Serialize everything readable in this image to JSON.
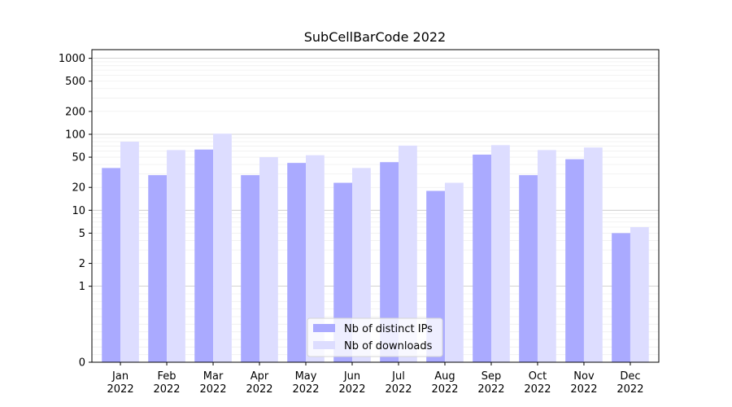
{
  "chart_data": {
    "type": "bar",
    "title": "SubCellBarCode 2022",
    "xlabel": "",
    "ylabel": "",
    "yscale": "symlog",
    "ylim": [
      0,
      1300
    ],
    "yticks": [
      0,
      1,
      2,
      5,
      10,
      20,
      50,
      100,
      200,
      500,
      1000
    ],
    "ytick_labels": [
      "0",
      "1",
      "2",
      "5",
      "10",
      "20",
      "50",
      "100",
      "200",
      "500",
      "1000"
    ],
    "categories": [
      "Jan",
      "Feb",
      "Mar",
      "Apr",
      "May",
      "Jun",
      "Jul",
      "Aug",
      "Sep",
      "Oct",
      "Nov",
      "Dec"
    ],
    "category_year": "2022",
    "series": [
      {
        "name": "Nb of distinct IPs",
        "color": "#aaaaff",
        "values": [
          36,
          29,
          63,
          29,
          42,
          23,
          43,
          18,
          54,
          29,
          47,
          5
        ]
      },
      {
        "name": "Nb of downloads",
        "color": "#ddddff",
        "values": [
          80,
          62,
          102,
          50,
          53,
          36,
          71,
          23,
          72,
          62,
          67,
          6
        ]
      }
    ],
    "grid": true,
    "legend_position": "bottom-center"
  }
}
